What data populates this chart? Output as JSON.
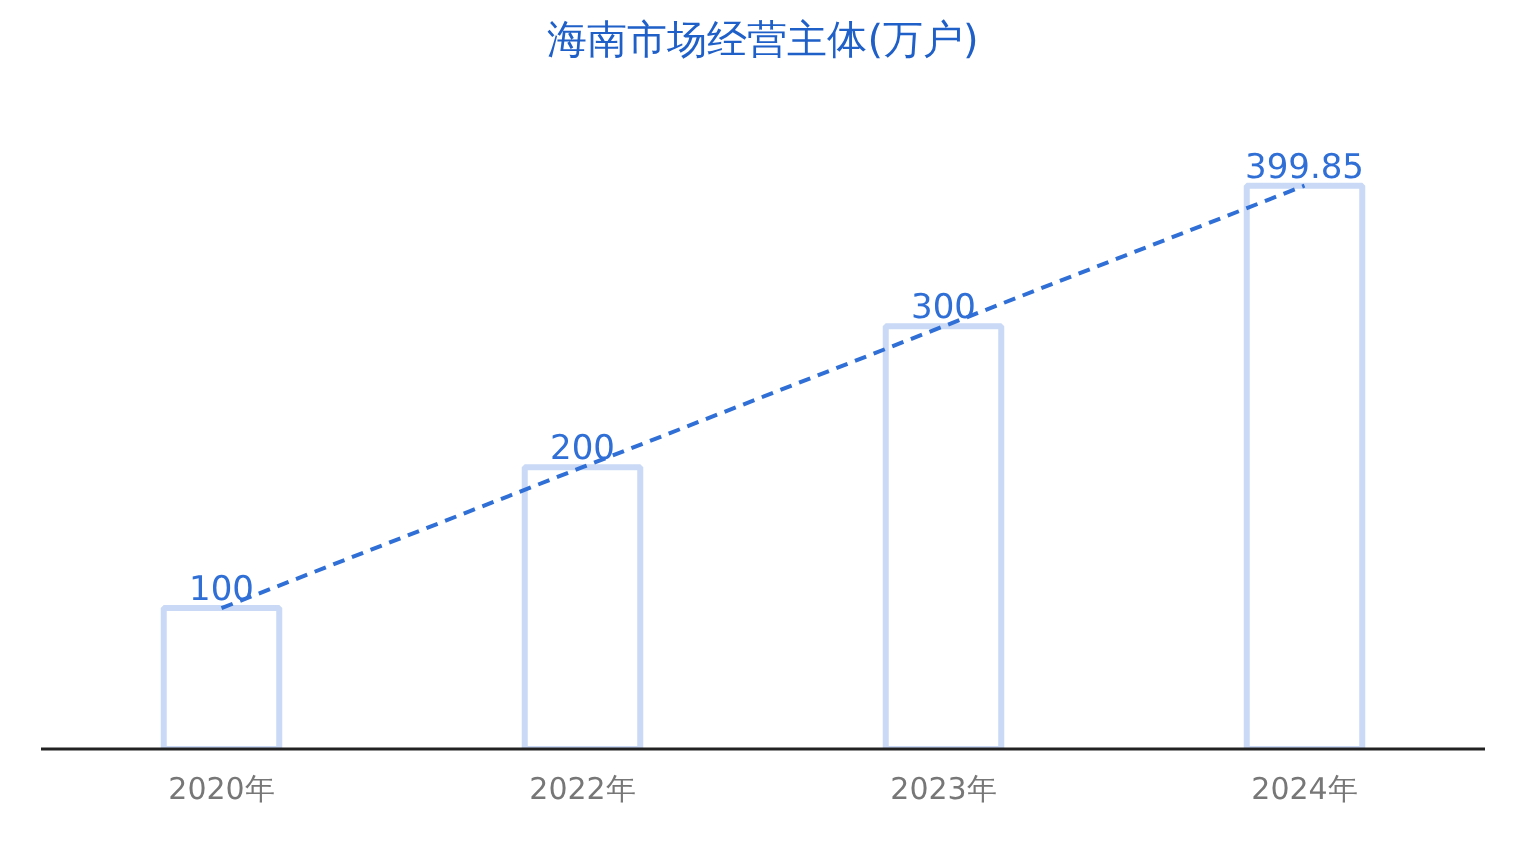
{
  "chart_data": {
    "type": "bar",
    "title": "海南市场经营主体(万户)",
    "categories": [
      "2020年",
      "2022年",
      "2023年",
      "2024年"
    ],
    "series": [
      {
        "color": "#c9d9f6",
        "values": [
          100,
          200,
          300,
          399.85
        ],
        "value_labels": [
          "100",
          "200",
          "300",
          "399.85"
        ]
      },
      {
        "type": "line",
        "color": "#2f6fd6",
        "values": [
          100,
          200,
          300,
          399.85
        ],
        "line_style": "dashed",
        "marker": "none"
      }
    ],
    "grid": false
  }
}
